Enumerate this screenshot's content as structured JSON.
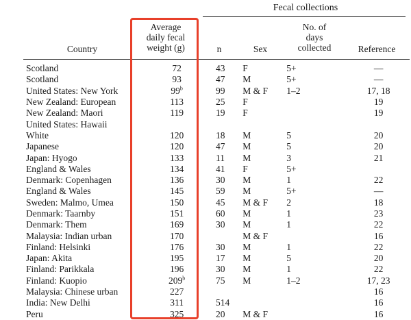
{
  "table": {
    "span_header": "Fecal collections",
    "headers": {
      "country": "Country",
      "weight": "Average\ndaily fecal\nweight (g)",
      "n": "n",
      "sex": "Sex",
      "days": "No. of\ndays\ncollected",
      "reference": "Reference"
    },
    "rows": [
      {
        "country": "Scotland",
        "indent": false,
        "weight": "72",
        "note": "",
        "n": "43",
        "sex": "F",
        "days": "5+",
        "ref": "—"
      },
      {
        "country": "Scotland",
        "indent": false,
        "weight": "93",
        "note": "",
        "n": "47",
        "sex": "M",
        "days": "5+",
        "ref": "—"
      },
      {
        "country": "United States: New York",
        "indent": false,
        "weight": "99",
        "note": "b",
        "n": "99",
        "sex": "M & F",
        "days": "1–2",
        "ref": "17, 18"
      },
      {
        "country": "New Zealand: European",
        "indent": false,
        "weight": "113",
        "note": "",
        "n": "25",
        "sex": "F",
        "days": "",
        "ref": "19"
      },
      {
        "country": "New Zealand: Maori",
        "indent": false,
        "weight": "119",
        "note": "",
        "n": "19",
        "sex": "F",
        "days": "",
        "ref": "19"
      },
      {
        "country": "United States: Hawaii",
        "indent": false,
        "weight": "",
        "note": "",
        "n": "",
        "sex": "",
        "days": "",
        "ref": ""
      },
      {
        "country": "White",
        "indent": true,
        "weight": "120",
        "note": "",
        "n": "18",
        "sex": "M",
        "days": "5",
        "ref": "20"
      },
      {
        "country": "Japanese",
        "indent": true,
        "weight": "120",
        "note": "",
        "n": "47",
        "sex": "M",
        "days": "5",
        "ref": "20"
      },
      {
        "country": "Japan: Hyogo",
        "indent": false,
        "weight": "133",
        "note": "",
        "n": "11",
        "sex": "M",
        "days": "3",
        "ref": "21"
      },
      {
        "country": "England & Wales",
        "indent": false,
        "weight": "134",
        "note": "",
        "n": "41",
        "sex": "F",
        "days": "5+",
        "ref": ""
      },
      {
        "country": "Denmark: Copenhagen",
        "indent": false,
        "weight": "136",
        "note": "",
        "n": "30",
        "sex": "M",
        "days": "1",
        "ref": "22"
      },
      {
        "country": "England & Wales",
        "indent": false,
        "weight": "145",
        "note": "",
        "n": "59",
        "sex": "M",
        "days": "5+",
        "ref": "—"
      },
      {
        "country": "Sweden: Malmo, Umea",
        "indent": false,
        "weight": "150",
        "note": "",
        "n": "45",
        "sex": "M & F",
        "days": "2",
        "ref": "18"
      },
      {
        "country": "Denmark: Taarnby",
        "indent": false,
        "weight": "151",
        "note": "",
        "n": "60",
        "sex": "M",
        "days": "1",
        "ref": "23"
      },
      {
        "country": "Denmark: Them",
        "indent": false,
        "weight": "169",
        "note": "",
        "n": "30",
        "sex": "M",
        "days": "1",
        "ref": "22"
      },
      {
        "country": "Malaysia: Indian urban",
        "indent": false,
        "weight": "170",
        "note": "",
        "n": "",
        "sex": "M & F",
        "days": "",
        "ref": "16"
      },
      {
        "country": "Finland: Helsinki",
        "indent": false,
        "weight": "176",
        "note": "",
        "n": "30",
        "sex": "M",
        "days": "1",
        "ref": "22"
      },
      {
        "country": "Japan: Akita",
        "indent": false,
        "weight": "195",
        "note": "",
        "n": "17",
        "sex": "M",
        "days": "5",
        "ref": "20"
      },
      {
        "country": "Finland: Parikkala",
        "indent": false,
        "weight": "196",
        "note": "",
        "n": "30",
        "sex": "M",
        "days": "1",
        "ref": "22"
      },
      {
        "country": "Finland: Kuopio",
        "indent": false,
        "weight": "209",
        "note": "b",
        "n": "75",
        "sex": "M",
        "days": "1–2",
        "ref": "17, 23"
      },
      {
        "country": "Malaysia: Chinese urban",
        "indent": false,
        "weight": "227",
        "note": "",
        "n": "",
        "sex": "",
        "days": "",
        "ref": "16"
      },
      {
        "country": "India: New Delhi",
        "indent": false,
        "weight": "311",
        "note": "",
        "n": "514",
        "sex": "",
        "days": "",
        "ref": "16"
      },
      {
        "country": "Peru",
        "indent": false,
        "weight": "325",
        "note": "",
        "n": "20",
        "sex": "M & F",
        "days": "",
        "ref": "16"
      }
    ]
  },
  "highlight": {
    "color": "#e8402a"
  }
}
